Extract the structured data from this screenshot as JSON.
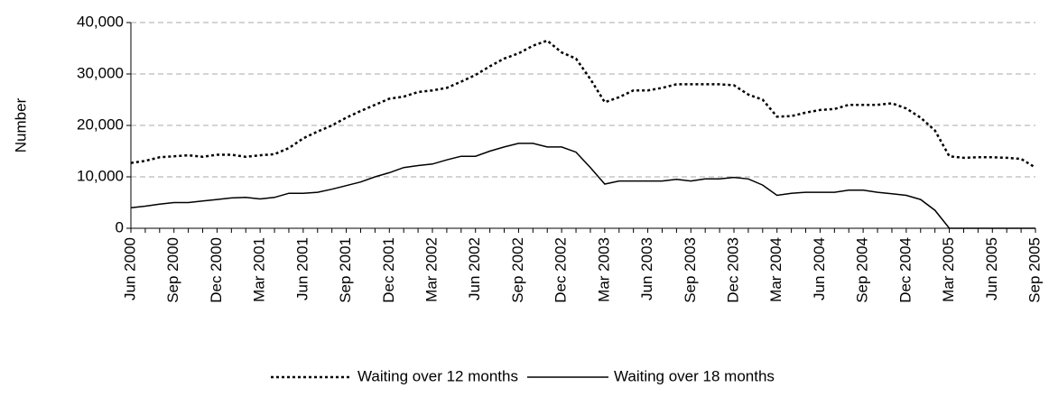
{
  "chart_data": {
    "type": "line",
    "y_label": "Number",
    "categories": [
      "Jun 2000",
      null,
      null,
      "Sep 2000",
      null,
      null,
      "Dec 2000",
      null,
      null,
      "Mar 2001",
      null,
      null,
      "Jun 2001",
      null,
      null,
      "Sep 2001",
      null,
      null,
      "Dec 2001",
      null,
      null,
      "Mar 2002",
      null,
      null,
      "Jun 2002",
      null,
      null,
      "Sep 2002",
      null,
      null,
      "Dec 2002",
      null,
      null,
      "Mar 2003",
      null,
      null,
      "Jun 2003",
      null,
      null,
      "Sep 2003",
      null,
      null,
      "Dec 2003",
      null,
      null,
      "Mar 2004",
      null,
      null,
      "Jun 2004",
      null,
      null,
      "Sep 2004",
      null,
      null,
      "Dec 2004",
      null,
      null,
      "Mar 2005",
      null,
      null,
      "Jun 2005",
      null,
      null,
      "Sep 2005"
    ],
    "series": [
      {
        "name": "Waiting over 12 months",
        "color": "#000000",
        "dash": "dotted",
        "values": [
          12700,
          13100,
          13800,
          14000,
          14200,
          13900,
          14300,
          14300,
          13900,
          14200,
          14400,
          15600,
          17500,
          18800,
          20000,
          21500,
          22800,
          24000,
          25200,
          25600,
          26500,
          26800,
          27300,
          28500,
          29800,
          31500,
          33000,
          34000,
          35500,
          36500,
          34200,
          33000,
          29000,
          24500,
          25500,
          26800,
          26800,
          27300,
          28000,
          28000,
          28000,
          28000,
          27800,
          26000,
          25000,
          21700,
          21800,
          22500,
          23000,
          23200,
          24000,
          24000,
          24000,
          24300,
          23300,
          21500,
          19000,
          14000,
          13700,
          13800,
          13800,
          13700,
          13500,
          11800
        ]
      },
      {
        "name": "Waiting over 18 months",
        "color": "#000000",
        "dash": "solid",
        "values": [
          4000,
          4300,
          4700,
          5000,
          5000,
          5300,
          5600,
          5900,
          6000,
          5700,
          6000,
          6800,
          6800,
          7000,
          7600,
          8300,
          9000,
          10000,
          10800,
          11800,
          12200,
          12500,
          13300,
          14000,
          14000,
          15000,
          15800,
          16500,
          16500,
          15800,
          15800,
          14800,
          11800,
          8600,
          9200,
          9200,
          9200,
          9200,
          9500,
          9200,
          9600,
          9600,
          9900,
          9600,
          8400,
          6400,
          6800,
          7000,
          7000,
          7000,
          7400,
          7400,
          7000,
          6700,
          6400,
          5600,
          3500,
          0,
          0,
          0,
          0,
          0,
          0,
          0
        ]
      }
    ],
    "ylim": [
      0,
      40000
    ],
    "yticks": [
      {
        "value": 0,
        "label": "0"
      },
      {
        "value": 10000,
        "label": "10,000"
      },
      {
        "value": 20000,
        "label": "20,000"
      },
      {
        "value": 30000,
        "label": "30,000"
      },
      {
        "value": 40000,
        "label": "40,000"
      }
    ],
    "grid": true,
    "legend": "bottom"
  }
}
